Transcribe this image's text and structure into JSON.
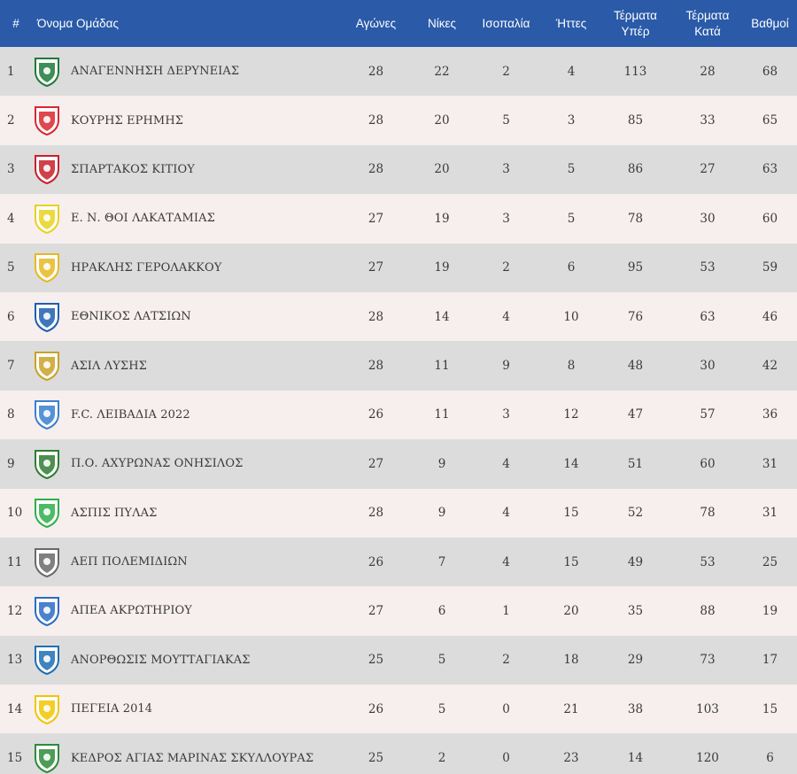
{
  "headers": {
    "pos": "#",
    "team": "Όνομα Ομάδας",
    "played": "Αγώνες",
    "wins": "Νίκες",
    "draws": "Ισοπαλία",
    "losses": "Ήττες",
    "gf": "Τέρματα Υπέρ",
    "ga": "Τέρματα Κατά",
    "pts": "Βαθμοί"
  },
  "rows": [
    {
      "pos": "1",
      "team": "ΑΝΑΓΕΝΝΗΣΗ ΔΕΡΥΝΕΙΑΣ",
      "logo": "anagennisi-crest-icon",
      "color": "#1f7a3a",
      "played": "28",
      "wins": "22",
      "draws": "2",
      "losses": "4",
      "gf": "113",
      "ga": "28",
      "pts": "68"
    },
    {
      "pos": "2",
      "team": "ΚΟΥΡΗΣ ΕΡΗΜΗΣ",
      "logo": "kouris-crest-icon",
      "color": "#d9282f",
      "played": "28",
      "wins": "20",
      "draws": "5",
      "losses": "3",
      "gf": "85",
      "ga": "33",
      "pts": "65"
    },
    {
      "pos": "3",
      "team": "ΣΠΑΡΤΑΚΟΣ ΚΙΤΙΟΥ",
      "logo": "spartakos-crest-icon",
      "color": "#c8202a",
      "played": "28",
      "wins": "20",
      "draws": "3",
      "losses": "5",
      "gf": "86",
      "ga": "27",
      "pts": "63"
    },
    {
      "pos": "4",
      "team": "Ε. Ν. ΘΟΙ ΛΑΚΑΤΑΜΙΑΣ",
      "logo": "thoi-crest-icon",
      "color": "#e8d21e",
      "played": "27",
      "wins": "19",
      "draws": "3",
      "losses": "5",
      "gf": "78",
      "ga": "30",
      "pts": "60"
    },
    {
      "pos": "5",
      "team": "ΗΡΑΚΛΗΣ ΓΕΡΟΛΑΚΚΟΥ",
      "logo": "iraklis-crest-icon",
      "color": "#e7b823",
      "played": "27",
      "wins": "19",
      "draws": "2",
      "losses": "6",
      "gf": "95",
      "ga": "53",
      "pts": "59"
    },
    {
      "pos": "6",
      "team": "ΕΘΝΙΚΟΣ ΛΑΤΣΙΩΝ",
      "logo": "ethnikos-crest-icon",
      "color": "#1d5fb0",
      "played": "28",
      "wins": "14",
      "draws": "4",
      "losses": "10",
      "gf": "76",
      "ga": "63",
      "pts": "46"
    },
    {
      "pos": "7",
      "team": "ΑΣΙΛ ΛΥΣΗΣ",
      "logo": "asil-crest-icon",
      "color": "#c9a227",
      "played": "28",
      "wins": "11",
      "draws": "9",
      "losses": "8",
      "gf": "48",
      "ga": "30",
      "pts": "42"
    },
    {
      "pos": "8",
      "team": "F.C. ΛΕΙΒΑΔΙΑ 2022",
      "logo": "leivadia-crest-icon",
      "color": "#3a7fd0",
      "played": "26",
      "wins": "11",
      "draws": "3",
      "losses": "12",
      "gf": "47",
      "ga": "57",
      "pts": "36"
    },
    {
      "pos": "9",
      "team": "Π.Ο. ΑΧΥΡΩΝΑΣ ΟΝΗΣΙΛΟΣ",
      "logo": "achyronas-crest-icon",
      "color": "#2e7d32",
      "played": "27",
      "wins": "9",
      "draws": "4",
      "losses": "14",
      "gf": "51",
      "ga": "60",
      "pts": "31"
    },
    {
      "pos": "10",
      "team": "ΑΣΠΙΣ ΠΥΛΑΣ",
      "logo": "aspis-crest-icon",
      "color": "#2fae4a",
      "played": "28",
      "wins": "9",
      "draws": "4",
      "losses": "15",
      "gf": "52",
      "ga": "78",
      "pts": "31"
    },
    {
      "pos": "11",
      "team": "ΑΕΠ ΠΟΛΕΜΙΔΙΩΝ",
      "logo": "aep-crest-icon",
      "color": "#6a6a6a",
      "played": "26",
      "wins": "7",
      "draws": "4",
      "losses": "15",
      "gf": "49",
      "ga": "53",
      "pts": "25"
    },
    {
      "pos": "12",
      "team": "ΑΠΕΑ ΑΚΡΩΤΗΡΙΟΥ",
      "logo": "apea-crest-icon",
      "color": "#2a6cc4",
      "played": "27",
      "wins": "6",
      "draws": "1",
      "losses": "20",
      "gf": "35",
      "ga": "88",
      "pts": "19"
    },
    {
      "pos": "13",
      "team": "ΑΝΟΡΘΩΣΙΣ ΜΟΥΤΤΑΓΙΑΚΑΣ",
      "logo": "anorthosis-crest-icon",
      "color": "#1e6fb3",
      "played": "25",
      "wins": "5",
      "draws": "2",
      "losses": "18",
      "gf": "29",
      "ga": "73",
      "pts": "17"
    },
    {
      "pos": "14",
      "team": "ΠΕΓΕΙΑ 2014",
      "logo": "pegeia-crest-icon",
      "color": "#f2c500",
      "played": "26",
      "wins": "5",
      "draws": "0",
      "losses": "21",
      "gf": "38",
      "ga": "103",
      "pts": "15"
    },
    {
      "pos": "15",
      "team": "ΚΕΔΡΟΣ ΑΓΙΑΣ ΜΑΡΙΝΑΣ ΣΚΥΛΛΟΥΡΑΣ",
      "logo": "kedros-crest-icon",
      "color": "#2e8b3a",
      "played": "25",
      "wins": "2",
      "draws": "0",
      "losses": "23",
      "gf": "14",
      "ga": "120",
      "pts": "6"
    }
  ]
}
